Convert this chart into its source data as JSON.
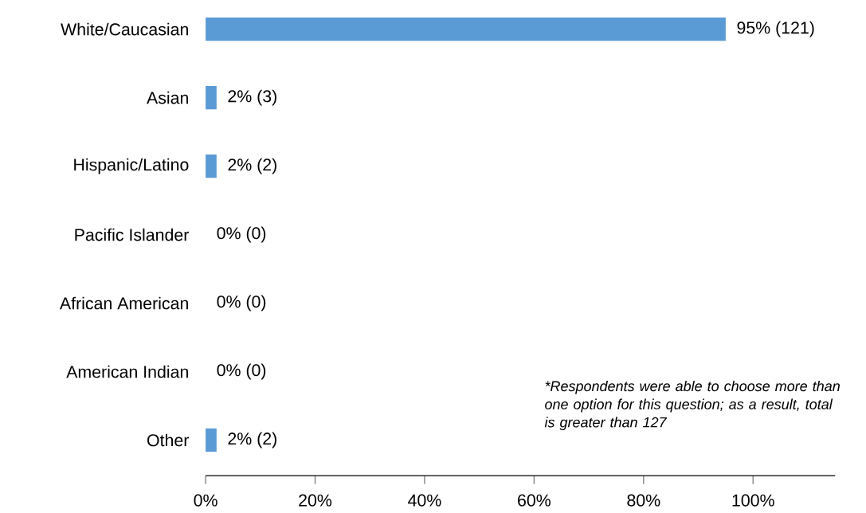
{
  "chart_data": {
    "type": "bar",
    "orientation": "horizontal",
    "categories": [
      "White/Caucasian",
      "Asian",
      "Hispanic/Latino",
      "Pacific Islander",
      "African American",
      "American Indian",
      "Other"
    ],
    "values": [
      95,
      2,
      2,
      0,
      0,
      0,
      2
    ],
    "value_labels": [
      "95% (121)",
      "2% (3)",
      "2% (2)",
      "0% (0)",
      "0% (0)",
      "0% (0)",
      "2% (2)"
    ],
    "color": "#5b9bd5",
    "xlim": [
      0,
      115
    ],
    "xticks": [
      {
        "value": 0,
        "label": "0%"
      },
      {
        "value": 20,
        "label": "20%"
      },
      {
        "value": 40,
        "label": "40%"
      },
      {
        "value": 60,
        "label": "60%"
      },
      {
        "value": 80,
        "label": "80%"
      },
      {
        "value": 100,
        "label": "100%"
      }
    ],
    "annotations": [
      "*Respondents were able to choose more than one option for this question; as a result, total is greater than 127"
    ]
  }
}
